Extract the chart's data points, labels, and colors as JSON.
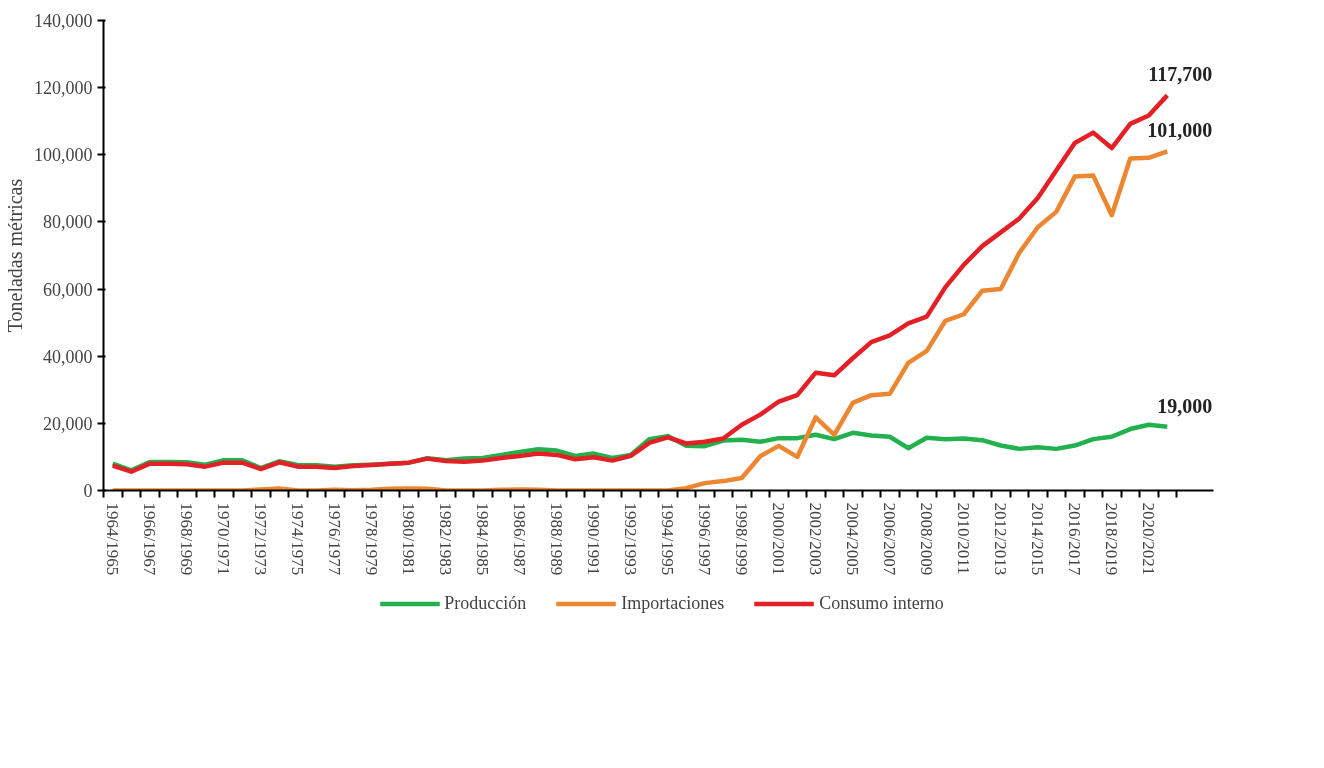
{
  "chart_data": {
    "type": "line",
    "ylabel": "Toneladas métricas",
    "categories": [
      "1964/1965",
      null,
      "1966/1967",
      null,
      "1968/1969",
      null,
      "1970/1971",
      null,
      "1972/1973",
      null,
      "1974/1975",
      null,
      "1976/1977",
      null,
      "1978/1979",
      null,
      "1980/1981",
      null,
      "1982/1983",
      null,
      "1984/1985",
      null,
      "1986/1987",
      null,
      "1988/1989",
      null,
      "1990/1991",
      null,
      "1992/1993",
      null,
      "1994/1995",
      null,
      "1996/1997",
      null,
      "1998/1999",
      null,
      "2000/2001",
      null,
      "2002/2003",
      null,
      "2004/2005",
      null,
      "2006/2007",
      null,
      "2008/2009",
      null,
      "2010/2011",
      null,
      "2012/2013",
      null,
      "2014/2015",
      null,
      "2016/2017",
      null,
      "2018/2019",
      null,
      "2020/2021",
      null
    ],
    "series": [
      {
        "name": "Producción",
        "color": "#22b14c",
        "values": [
          8000,
          6000,
          8500,
          8500,
          8400,
          7700,
          9000,
          9000,
          6700,
          8700,
          7600,
          7500,
          7100,
          7500,
          7700,
          8000,
          8300,
          9600,
          9000,
          9500,
          9700,
          10600,
          11500,
          12300,
          11900,
          10300,
          11000,
          9700,
          10600,
          15300,
          16200,
          13300,
          13200,
          14900,
          15100,
          14500,
          15600,
          15600,
          16600,
          15300,
          17200,
          16400,
          16000,
          12600,
          15700,
          15300,
          15500,
          15000,
          13400,
          12400,
          12900,
          12400,
          13400,
          15300,
          16000,
          18300,
          19600,
          19000
        ],
        "value_labels": [
          null,
          null,
          null,
          null,
          null,
          null,
          null,
          null,
          null,
          null,
          null,
          null,
          null,
          null,
          null,
          null,
          null,
          null,
          null,
          null,
          null,
          null,
          null,
          null,
          null,
          null,
          null,
          null,
          null,
          null,
          null,
          null,
          null,
          null,
          null,
          null,
          null,
          null,
          null,
          null,
          null,
          null,
          null,
          null,
          null,
          null,
          null,
          null,
          null,
          null,
          null,
          null,
          null,
          null,
          null,
          null,
          null,
          "19,000"
        ]
      },
      {
        "name": "Importaciones",
        "color": "#ed8631",
        "values": [
          0,
          0,
          0,
          0,
          0,
          0,
          0,
          0,
          300,
          600,
          0,
          0,
          200,
          100,
          200,
          500,
          600,
          500,
          0,
          0,
          0,
          200,
          300,
          200,
          0,
          0,
          0,
          0,
          0,
          0,
          0,
          700,
          2200,
          2800,
          3700,
          10200,
          13300,
          10000,
          21800,
          16600,
          26100,
          28400,
          28800,
          38000,
          41600,
          50500,
          52500,
          59500,
          60000,
          70800,
          78400,
          83000,
          93500,
          93800,
          82000,
          98900,
          99100,
          101000
        ],
        "value_labels": [
          null,
          null,
          null,
          null,
          null,
          null,
          null,
          null,
          null,
          null,
          null,
          null,
          null,
          null,
          null,
          null,
          null,
          null,
          null,
          null,
          null,
          null,
          null,
          null,
          null,
          null,
          null,
          null,
          null,
          null,
          null,
          null,
          null,
          null,
          null,
          null,
          null,
          null,
          null,
          null,
          null,
          null,
          null,
          null,
          null,
          null,
          null,
          null,
          null,
          null,
          null,
          null,
          null,
          null,
          null,
          null,
          null,
          "101,000"
        ]
      },
      {
        "name": "Consumo interno",
        "color": "#e41f26",
        "values": [
          7400,
          5600,
          8000,
          8000,
          7800,
          7100,
          8300,
          8300,
          6400,
          8400,
          7100,
          7100,
          6700,
          7300,
          7600,
          8000,
          8300,
          9500,
          8800,
          8600,
          8900,
          9700,
          10300,
          11000,
          10600,
          9300,
          9900,
          8900,
          10300,
          14200,
          15800,
          14000,
          14500,
          15500,
          19600,
          22600,
          26500,
          28400,
          35100,
          34300,
          39400,
          44200,
          46200,
          49800,
          51800,
          60500,
          67200,
          72800,
          76900,
          81000,
          87100,
          95300,
          103500,
          106600,
          102000,
          109200,
          111700,
          117700
        ],
        "value_labels": [
          null,
          null,
          null,
          null,
          null,
          null,
          null,
          null,
          null,
          null,
          null,
          null,
          null,
          null,
          null,
          null,
          null,
          null,
          null,
          null,
          null,
          null,
          null,
          null,
          null,
          null,
          null,
          null,
          null,
          null,
          null,
          null,
          null,
          null,
          null,
          null,
          null,
          null,
          null,
          null,
          null,
          null,
          null,
          null,
          null,
          null,
          null,
          null,
          null,
          null,
          null,
          null,
          null,
          null,
          null,
          null,
          null,
          "117,700"
        ]
      }
    ],
    "ylim": [
      0,
      140000
    ],
    "yticks": [
      0,
      {
        "value": 20000,
        "label": "20,000"
      },
      {
        "value": 40000,
        "label": "40,000"
      },
      {
        "value": 60000,
        "label": "60,000"
      },
      {
        "value": 80000,
        "label": "80,000"
      },
      {
        "value": 100000,
        "label": "100,000"
      },
      {
        "value": 120000,
        "label": "120,000"
      },
      {
        "value": 140000,
        "label": "140,000"
      }
    ],
    "grid": false,
    "legend": "bottom",
    "marker": "none",
    "line_style": "solid"
  }
}
